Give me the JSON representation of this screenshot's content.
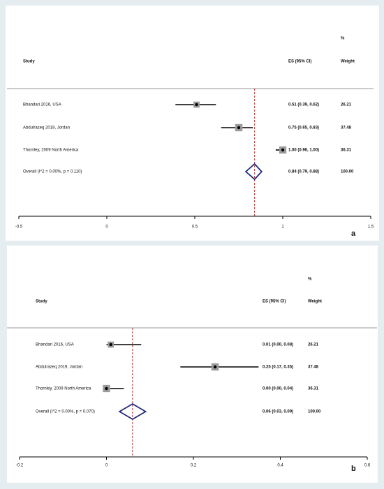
{
  "chart_data": [
    {
      "type": "forest",
      "panel_label": "a",
      "columns": {
        "pct": "%",
        "study": "Study",
        "es": "ES (95% CI)",
        "weight": "Weight"
      },
      "categories": [
        "Bhandari 2016, USA",
        "Abdulrazeq 2019, Jordan",
        "Thornley, 2009 North America"
      ],
      "values": [
        0.51,
        0.75,
        1.0
      ],
      "ci_low": [
        0.39,
        0.65,
        0.96
      ],
      "ci_high": [
        0.62,
        0.83,
        1.0
      ],
      "value_labels": [
        "0.51 (0.39, 0.62)",
        "0.75 (0.65, 0.83)",
        "1.00 (0.96, 1.00)"
      ],
      "weights": [
        26.21,
        37.48,
        36.31
      ],
      "overall": {
        "label": "Overall  (I^2 = 0.00%, p = 0.110)",
        "value": 0.84,
        "ci_low": 0.79,
        "ci_high": 0.88,
        "value_label": "0.84 (0.79, 0.88)",
        "weight": {
          "value": 100,
          "label": "100.00"
        }
      },
      "xlim": [
        -0.5,
        1.5
      ],
      "xticks": [
        -0.5,
        0,
        0.5,
        1,
        1.5
      ],
      "diamond_color": "#1f2a7a",
      "ref_color": "#b03030",
      "box_color": "#9a9a9a"
    },
    {
      "type": "forest",
      "panel_label": "b",
      "columns": {
        "pct": "%",
        "study": "Study",
        "es": "ES (95% CI)",
        "weight": "Weight"
      },
      "categories": [
        "Bhandari 2016, USA",
        "Abdulrazeq 2019, Jordan",
        "Thornley, 2009 North America"
      ],
      "values": [
        0.01,
        0.25,
        0.0
      ],
      "ci_low": [
        0.0,
        0.17,
        0.0
      ],
      "ci_high": [
        0.08,
        0.35,
        0.04
      ],
      "value_labels": [
        "0.01 (0.00, 0.08)",
        "0.25 (0.17, 0.35)",
        "0.00 (0.00, 0.04)"
      ],
      "weights": [
        26.21,
        37.48,
        36.31
      ],
      "overall": {
        "label": "Overall  (I^2 = 0.00%, p = 0.070)",
        "value": 0.06,
        "ci_low": 0.03,
        "ci_high": 0.09,
        "value_label": "0.06 (0.03, 0.09)",
        "weight": {
          "value": 100,
          "label": "100.00"
        }
      },
      "xlim": [
        -0.2,
        0.6
      ],
      "xticks": [
        -0.2,
        0,
        0.2,
        0.4,
        0.6
      ],
      "diamond_color": "#1f2a7a",
      "ref_color": "#b03030",
      "box_color": "#9a9a9a"
    }
  ]
}
